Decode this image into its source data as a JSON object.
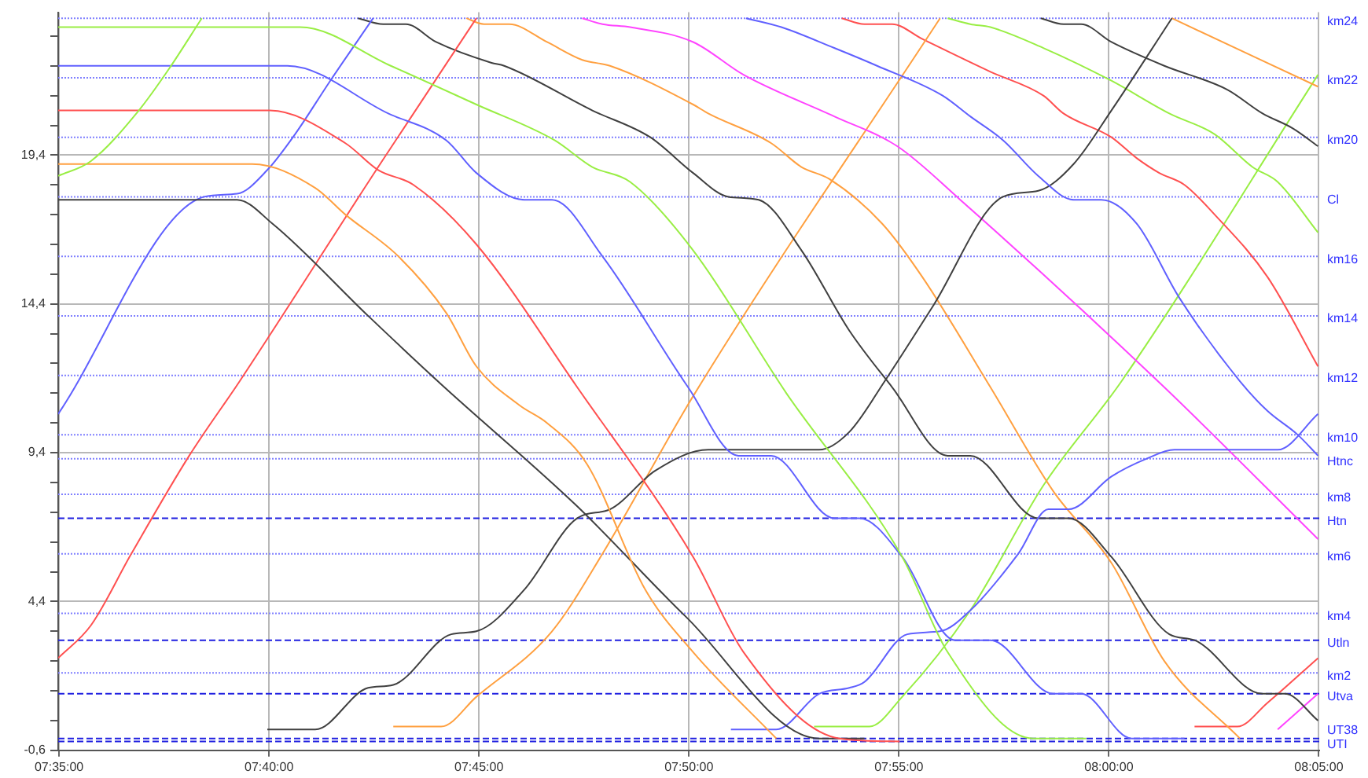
{
  "chart_data": {
    "type": "line",
    "marker": "none",
    "grid": true,
    "legend": false,
    "xlim": [
      7.583,
      8.0835
    ],
    "xticks": [
      {
        "value": 7.58333,
        "label": "07:35:00"
      },
      {
        "value": 7.66667,
        "label": "07:40:00"
      },
      {
        "value": 7.75,
        "label": "07:45:00"
      },
      {
        "value": 7.83333,
        "label": "07:50:00"
      },
      {
        "value": 7.91667,
        "label": "07:55:00"
      },
      {
        "value": 8.0,
        "label": "08:00:00"
      },
      {
        "value": 8.08333,
        "label": "08:05:00"
      }
    ],
    "ylim": [
      -0.6,
      24.2
    ],
    "yticks": [
      {
        "value": -0.6,
        "label": "-0,6"
      },
      {
        "value": 0.4,
        "label": null
      },
      {
        "value": 1.4,
        "label": null
      },
      {
        "value": 2.4,
        "label": null
      },
      {
        "value": 3.4,
        "label": null
      },
      {
        "value": 4.4,
        "label": "4,4"
      },
      {
        "value": 5.4,
        "label": null
      },
      {
        "value": 6.4,
        "label": null
      },
      {
        "value": 7.4,
        "label": null
      },
      {
        "value": 8.4,
        "label": null
      },
      {
        "value": 9.4,
        "label": "9,4"
      },
      {
        "value": 10.4,
        "label": null
      },
      {
        "value": 11.4,
        "label": null
      },
      {
        "value": 12.4,
        "label": null
      },
      {
        "value": 13.4,
        "label": null
      },
      {
        "value": 14.4,
        "label": "14,4"
      },
      {
        "value": 15.4,
        "label": null
      },
      {
        "value": 16.4,
        "label": null
      },
      {
        "value": 17.4,
        "label": null
      },
      {
        "value": 18.4,
        "label": null
      },
      {
        "value": 19.4,
        "label": "19,4"
      },
      {
        "value": 20.4,
        "label": null
      },
      {
        "value": 21.4,
        "label": null
      },
      {
        "value": 22.4,
        "label": null
      },
      {
        "value": 23.4,
        "label": null
      }
    ],
    "ref_lines": [
      {
        "axis": "y",
        "value": 24,
        "label": "km24",
        "color": "#8080ff",
        "line_style": "dotted"
      },
      {
        "axis": "y",
        "value": 22,
        "label": "km22",
        "color": "#8080ff",
        "line_style": "dotted"
      },
      {
        "axis": "y",
        "value": 20,
        "label": "km20",
        "color": "#8080ff",
        "line_style": "dotted"
      },
      {
        "axis": "y",
        "value": 18,
        "label": "Cl",
        "color": "#8080ff",
        "line_style": "dotted"
      },
      {
        "axis": "y",
        "value": 16,
        "label": "km16",
        "color": "#8080ff",
        "line_style": "dotted"
      },
      {
        "axis": "y",
        "value": 14,
        "label": "km14",
        "color": "#8080ff",
        "line_style": "dotted"
      },
      {
        "axis": "y",
        "value": 12,
        "label": "km12",
        "color": "#8080ff",
        "line_style": "dotted"
      },
      {
        "axis": "y",
        "value": 10,
        "label": "km10",
        "color": "#8080ff",
        "line_style": "dotted"
      },
      {
        "axis": "y",
        "value": 9.2,
        "label": "Htnc",
        "color": "#8080ff",
        "line_style": "dotted"
      },
      {
        "axis": "y",
        "value": 8,
        "label": "km8",
        "color": "#8080ff",
        "line_style": "dotted"
      },
      {
        "axis": "y",
        "value": 7.2,
        "label": "Htn",
        "color": "#2020e0",
        "line_style": "dashed"
      },
      {
        "axis": "y",
        "value": 6,
        "label": "km6",
        "color": "#8080ff",
        "line_style": "dotted"
      },
      {
        "axis": "y",
        "value": 4,
        "label": "km4",
        "color": "#8080ff",
        "line_style": "dotted"
      },
      {
        "axis": "y",
        "value": 3.1,
        "label": "Utln",
        "color": "#2020e0",
        "line_style": "dashed"
      },
      {
        "axis": "y",
        "value": 2,
        "label": "km2",
        "color": "#8080ff",
        "line_style": "dotted"
      },
      {
        "axis": "y",
        "value": 1.3,
        "label": "Utva",
        "color": "#2020e0",
        "line_style": "dashed"
      },
      {
        "axis": "y",
        "value": -0.2,
        "label": "UT38",
        "color": "#2020e0",
        "line_style": "dashed"
      },
      {
        "axis": "y",
        "value": -0.3,
        "label": "UTI",
        "color": "#2020e0",
        "line_style": "dashed"
      }
    ],
    "series": [
      {
        "color": "#99ee44",
        "x": [
          7.583,
          7.596,
          7.615,
          7.627,
          7.64
        ],
        "values": [
          18.7,
          19.2,
          20.9,
          22.3,
          24.0
        ]
      },
      {
        "color": "#99ee44",
        "x": [
          7.583,
          7.679,
          7.715,
          7.749,
          7.78,
          7.795,
          7.81,
          7.835,
          7.872,
          7.918,
          7.936,
          7.97,
          7.991
        ],
        "values": [
          23.7,
          23.7,
          22.4,
          21.1,
          19.9,
          19.0,
          18.5,
          16.2,
          11.4,
          5.9,
          2.7,
          -0.2,
          -0.2
        ]
      },
      {
        "color": "#6060ff",
        "x": [
          7.583,
          7.674,
          7.714,
          7.737,
          7.749,
          7.768,
          7.779,
          7.799,
          7.833,
          7.853,
          7.866,
          7.891,
          7.901,
          7.918,
          7.939,
          7.953,
          7.978,
          7.989,
          8.009,
          8.03
        ],
        "values": [
          22.4,
          22.4,
          20.8,
          19.9,
          18.8,
          17.9,
          17.9,
          16.0,
          11.6,
          9.3,
          9.3,
          7.2,
          7.2,
          5.9,
          3.1,
          3.1,
          1.3,
          1.3,
          -0.2,
          -0.2
        ]
      },
      {
        "color": "#ff5050",
        "x": [
          7.583,
          7.667,
          7.697,
          7.71,
          7.724,
          7.749,
          7.789,
          7.835,
          7.855,
          7.893,
          7.917
        ],
        "values": [
          20.9,
          20.9,
          19.8,
          18.9,
          18.4,
          16.4,
          11.6,
          5.9,
          2.7,
          -0.2,
          -0.3
        ]
      },
      {
        "color": "#ffa040",
        "x": [
          7.583,
          7.66,
          7.685,
          7.697,
          7.718,
          7.737,
          7.749,
          7.766,
          7.777,
          7.793,
          7.816,
          7.835,
          7.868
        ],
        "values": [
          19.1,
          19.1,
          18.3,
          17.4,
          16.0,
          14.1,
          12.3,
          11.0,
          10.4,
          9.0,
          4.8,
          2.7,
          -0.2
        ]
      },
      {
        "color": "#404040",
        "x": [
          7.583,
          7.654,
          7.668,
          7.706,
          7.735,
          7.789,
          7.832,
          7.885,
          7.903
        ],
        "values": [
          17.9,
          17.9,
          17.1,
          14.0,
          11.7,
          7.6,
          3.9,
          -0.2,
          -0.2
        ]
      },
      {
        "color": "#6060ff",
        "x": [
          7.583,
          7.641,
          7.654,
          7.666,
          7.677,
          7.691,
          7.708
        ],
        "values": [
          10.7,
          18.0,
          18.1,
          18.9,
          20.1,
          21.9,
          24.0
        ]
      },
      {
        "color": "#ff5050",
        "x": [
          7.583,
          7.596,
          7.612,
          7.635,
          7.655,
          7.71,
          7.749
        ],
        "values": [
          2.5,
          3.6,
          6.0,
          9.3,
          11.8,
          19.0,
          24.0
        ]
      },
      {
        "color": "#6060ff",
        "x": [
          7.856,
          7.87,
          7.891,
          7.908,
          7.934,
          7.945,
          7.958,
          7.972,
          7.986,
          7.997,
          8.011,
          8.028,
          8.052,
          8.063,
          8.075,
          8.083
        ],
        "values": [
          24.0,
          23.7,
          23.0,
          22.4,
          21.4,
          20.7,
          19.9,
          18.7,
          17.9,
          17.9,
          17.1,
          14.6,
          11.8,
          10.8,
          10.0,
          9.3
        ]
      },
      {
        "color": "#6060ff",
        "x": [
          7.85,
          7.868,
          7.885,
          7.897,
          7.903,
          7.92,
          7.933,
          7.945,
          7.964,
          7.976,
          7.984,
          8.001,
          8.015,
          8.026,
          8.067,
          8.083
        ],
        "values": [
          0.1,
          0.1,
          1.3,
          1.5,
          1.7,
          3.3,
          3.4,
          4.1,
          6.0,
          7.5,
          7.5,
          8.6,
          9.2,
          9.5,
          9.5,
          10.7
        ]
      },
      {
        "color": "#404040",
        "x": [
          7.666,
          7.685,
          7.706,
          7.716,
          7.739,
          7.749,
          7.768,
          7.789,
          7.802,
          7.82,
          7.841,
          7.885,
          7.897,
          7.911,
          7.93,
          7.958,
          7.972,
          7.986,
          8.001,
          8.025
        ],
        "values": [
          0.1,
          0.1,
          1.5,
          1.6,
          3.3,
          3.4,
          4.8,
          7.2,
          7.5,
          8.8,
          9.5,
          9.5,
          10.1,
          11.8,
          14.3,
          18.0,
          18.2,
          19.1,
          20.9,
          24.0
        ]
      },
      {
        "color": "#404040",
        "x": [
          7.702,
          7.712,
          7.721,
          7.733,
          7.755,
          7.76,
          7.795,
          7.818,
          7.835,
          7.849,
          7.861,
          7.878,
          7.897,
          7.914,
          7.936,
          7.945,
          7.972,
          7.984,
          8.001,
          8.024,
          8.034,
          8.061,
          8.07,
          8.083
        ],
        "values": [
          24.0,
          23.8,
          23.8,
          23.2,
          22.5,
          22.4,
          20.9,
          20.0,
          18.8,
          18.0,
          17.9,
          16.2,
          13.5,
          11.6,
          9.3,
          9.3,
          7.2,
          7.2,
          5.9,
          3.3,
          3.1,
          1.3,
          1.3,
          0.4
        ]
      },
      {
        "color": "#ffa040",
        "x": [
          7.745,
          7.752,
          7.762,
          7.777,
          7.791,
          7.802,
          7.835,
          7.841,
          7.866,
          7.878,
          7.889,
          7.91,
          7.926,
          7.953,
          7.978,
          8.001,
          8.022,
          8.052
        ],
        "values": [
          24.0,
          23.8,
          23.8,
          23.2,
          22.6,
          22.4,
          21.1,
          20.8,
          19.8,
          19.0,
          18.6,
          17.1,
          15.3,
          11.6,
          8.1,
          5.7,
          2.4,
          -0.2
        ]
      },
      {
        "color": "#ff44ff",
        "x": [
          7.791,
          7.799,
          7.81,
          7.835,
          7.855,
          7.891,
          7.916,
          7.941,
          8.022,
          8.083
        ],
        "values": [
          24.0,
          23.8,
          23.7,
          23.2,
          22.1,
          20.7,
          19.7,
          17.9,
          11.6,
          6.5
        ]
      },
      {
        "color": "#ffa040",
        "x": [
          7.716,
          7.735,
          7.749,
          7.779,
          7.799,
          7.835,
          7.933
        ],
        "values": [
          0.2,
          0.2,
          1.2,
          3.4,
          6.0,
          11.3,
          24.0
        ]
      },
      {
        "color": "#ff5050",
        "x": [
          7.894,
          7.903,
          7.914,
          7.926,
          7.953,
          7.974,
          7.982,
          8.001,
          8.011,
          8.02,
          8.03,
          8.042,
          8.063,
          8.083
        ],
        "values": [
          24.0,
          23.8,
          23.8,
          23.3,
          22.2,
          21.4,
          20.8,
          20.0,
          19.3,
          18.8,
          18.4,
          17.4,
          15.3,
          12.3
        ]
      },
      {
        "color": "#99ee44",
        "x": [
          7.936,
          7.945,
          7.953,
          7.974,
          8.001,
          8.024,
          8.042,
          8.057,
          8.067,
          8.083
        ],
        "values": [
          24.0,
          23.8,
          23.7,
          23.0,
          21.9,
          20.8,
          20.1,
          19.0,
          18.5,
          16.8
        ]
      },
      {
        "color": "#404040",
        "x": [
          7.973,
          7.982,
          7.989,
          8.001,
          8.022,
          8.047,
          8.061,
          8.073,
          8.083
        ],
        "values": [
          24.0,
          23.8,
          23.8,
          23.2,
          22.4,
          21.6,
          20.8,
          20.3,
          19.7
        ]
      },
      {
        "color": "#ffa040",
        "x": [
          8.025,
          8.083
        ],
        "values": [
          24.0,
          21.7
        ]
      },
      {
        "color": "#99ee44",
        "x": [
          7.883,
          7.905,
          7.918,
          7.945,
          7.974,
          8.005,
          8.083
        ],
        "values": [
          0.2,
          0.2,
          1.2,
          4.1,
          8.3,
          11.8,
          22.1
        ]
      },
      {
        "color": "#ff5050",
        "x": [
          8.034,
          8.051,
          8.063,
          8.083
        ],
        "values": [
          0.2,
          0.2,
          1.0,
          2.5
        ]
      },
      {
        "color": "#ff44ff",
        "x": [
          8.067,
          8.083
        ],
        "values": [
          0.1,
          1.3
        ]
      }
    ]
  }
}
